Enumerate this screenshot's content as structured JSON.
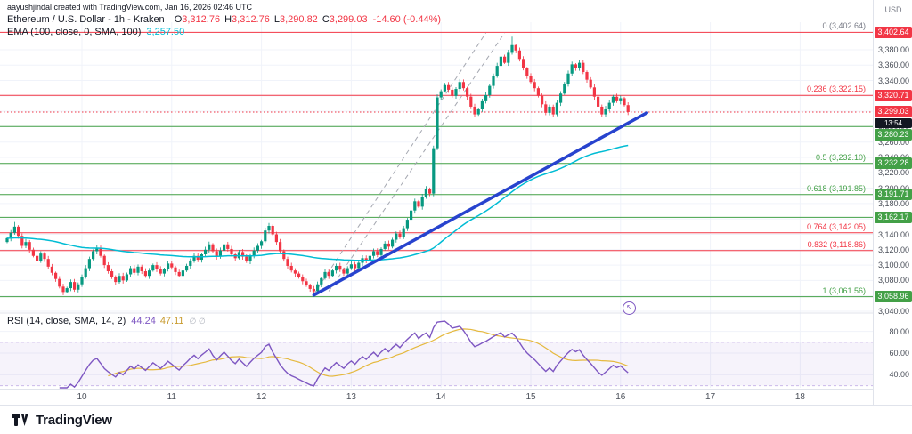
{
  "attribution": "aayushjindal created with TradingView.com, Jan 16, 2026 02:46 UTC",
  "legend": {
    "title": "Ethereum / U.S. Dollar - 1h - Kraken",
    "o_label": "O",
    "o": "3,312.76",
    "h_label": "H",
    "h": "3,312.76",
    "l_label": "L",
    "l": "3,290.82",
    "c_label": "C",
    "c": "3,299.03",
    "change": "-14.60 (-0.44%)",
    "ema_label": "EMA (100, close, 0, SMA, 100)",
    "ema_value": "3,257.50"
  },
  "rsi_legend": {
    "label": "RSI (14, close, SMA, 14, 2)",
    "value": "44.24",
    "ma_value": "47.11",
    "extra": "∅ ∅"
  },
  "axis": {
    "currency": "USD",
    "price_ticks": [
      3380,
      3360,
      3340,
      3320,
      3300,
      3280,
      3260,
      3240,
      3220,
      3200,
      3180,
      3160,
      3140,
      3120,
      3100,
      3080,
      3060,
      3040
    ],
    "rsi_ticks": [
      80,
      60,
      40
    ],
    "time_ticks": [
      {
        "label": "10",
        "index": 20
      },
      {
        "label": "11",
        "index": 44
      },
      {
        "label": "12",
        "index": 68
      },
      {
        "label": "13",
        "index": 92
      },
      {
        "label": "14",
        "index": 116
      },
      {
        "label": "15",
        "index": 140
      },
      {
        "label": "16",
        "index": 164
      },
      {
        "label": "17",
        "index": 188
      },
      {
        "label": "18",
        "index": 212
      }
    ]
  },
  "levels": [
    {
      "price": 3402.64,
      "color": "#F23645",
      "badge": "3,402.64",
      "fib_label": "0 (3,402.64)",
      "fib_color": "#787B86"
    },
    {
      "price": 3320.71,
      "color": "#F23645",
      "badge": "3,320.71",
      "fib_label": "0.236 (3,322.15)",
      "fib_color": "#F23645"
    },
    {
      "price": 3280.23,
      "color": "#43A047",
      "badge": "3,280.23"
    },
    {
      "price": 3232.28,
      "color": "#43A047",
      "badge": "3,232.28",
      "fib_label": "0.5 (3,232.10)",
      "fib_color": "#43A047"
    },
    {
      "price": 3191.71,
      "color": "#43A047",
      "badge": "3,191.71",
      "fib_label": "0.618 (3,191.85)",
      "fib_color": "#43A047"
    },
    {
      "price": 3162.17,
      "color": "#43A047",
      "badge": "3,162.17"
    },
    {
      "price": 3142.05,
      "color": "#F23645",
      "fib_label": "0.764 (3,142.05)",
      "fib_color": "#F23645"
    },
    {
      "price": 3118.86,
      "color": "#F23645",
      "fib_label": "0.832 (3,118.86)",
      "fib_color": "#F23645"
    },
    {
      "price": 3058.96,
      "color": "#43A047",
      "badge": "3,058.96",
      "fib_label": "1 (3,061.56)",
      "fib_color": "#43A047"
    }
  ],
  "current_price": {
    "value": 3299.03,
    "badge": "3,299.03",
    "countdown": "13:54"
  },
  "chart_data": {
    "type": "candlestick",
    "title": "Ethereum / U.S. Dollar",
    "exchange": "Kraken",
    "interval": "1h",
    "price_axis": {
      "min": 3040,
      "max": 3410,
      "tick_step": 20
    },
    "open_first": 3130,
    "closes": [
      3135,
      3142,
      3150,
      3138,
      3125,
      3130,
      3120,
      3112,
      3105,
      3115,
      3108,
      3098,
      3090,
      3082,
      3072,
      3065,
      3070,
      3078,
      3068,
      3075,
      3085,
      3096,
      3108,
      3118,
      3122,
      3112,
      3100,
      3092,
      3085,
      3078,
      3086,
      3080,
      3088,
      3096,
      3090,
      3098,
      3092,
      3086,
      3093,
      3100,
      3095,
      3089,
      3095,
      3102,
      3097,
      3091,
      3086,
      3093,
      3099,
      3106,
      3112,
      3107,
      3114,
      3120,
      3127,
      3118,
      3111,
      3119,
      3127,
      3121,
      3114,
      3109,
      3117,
      3111,
      3105,
      3112,
      3119,
      3125,
      3131,
      3145,
      3151,
      3140,
      3130,
      3118,
      3108,
      3099,
      3093,
      3089,
      3084,
      3079,
      3074,
      3069,
      3066,
      3075,
      3083,
      3091,
      3086,
      3093,
      3099,
      3094,
      3089,
      3096,
      3101,
      3096,
      3103,
      3109,
      3105,
      3112,
      3118,
      3113,
      3121,
      3128,
      3124,
      3133,
      3141,
      3137,
      3148,
      3159,
      3171,
      3183,
      3176,
      3189,
      3199,
      3193,
      3252,
      3318,
      3326,
      3334,
      3328,
      3320,
      3329,
      3338,
      3330,
      3319,
      3306,
      3296,
      3303,
      3313,
      3321,
      3333,
      3346,
      3359,
      3371,
      3363,
      3376,
      3386,
      3379,
      3368,
      3356,
      3346,
      3338,
      3330,
      3320,
      3309,
      3298,
      3306,
      3296,
      3311,
      3323,
      3336,
      3349,
      3361,
      3356,
      3363,
      3351,
      3341,
      3331,
      3319,
      3306,
      3296,
      3303,
      3311,
      3319,
      3313,
      3317,
      3308,
      3299
    ],
    "wick_overrides": [
      {
        "index": 2,
        "high": 3156
      },
      {
        "index": 15,
        "low": 3061
      },
      {
        "index": 82,
        "low": 3062
      },
      {
        "index": 135,
        "high": 3397
      }
    ],
    "ema": {
      "period": 100,
      "last_value": 3257.5
    },
    "rsi": {
      "period": 14,
      "ma_period": 14,
      "last_value": 44.24,
      "ma_last_value": 47.11,
      "band": [
        30,
        70
      ],
      "scale_ticks": [
        80,
        60,
        40
      ]
    },
    "trendline": {
      "from": {
        "index": 82,
        "price": 3061
      },
      "to": {
        "index": 171,
        "price": 3298
      }
    },
    "guides": [
      {
        "from": {
          "index": 82,
          "price": 3062
        },
        "to": {
          "index": 128,
          "price": 3402
        }
      },
      {
        "from": {
          "index": 86,
          "price": 3066
        },
        "to": {
          "index": 133,
          "price": 3402
        }
      }
    ]
  },
  "icons": {
    "marker": "↖"
  },
  "branding": {
    "logo_text": "TradingView"
  },
  "colors": {
    "up": "#089981",
    "down": "#F23645",
    "red": "#F23645",
    "green": "#43A047",
    "ema": "#00BCD4",
    "trend": "#2743CE",
    "guide": "#A5A8B1",
    "rsi": "#7E57C2",
    "rsi_ma": "#E5B93F",
    "grid": "#F0F3FA",
    "band_fill": "rgba(126,87,194,0.07)",
    "band_edge": "#CBB9EA",
    "axis_text": "#4A4F59",
    "separator": "#E0E3EB"
  }
}
